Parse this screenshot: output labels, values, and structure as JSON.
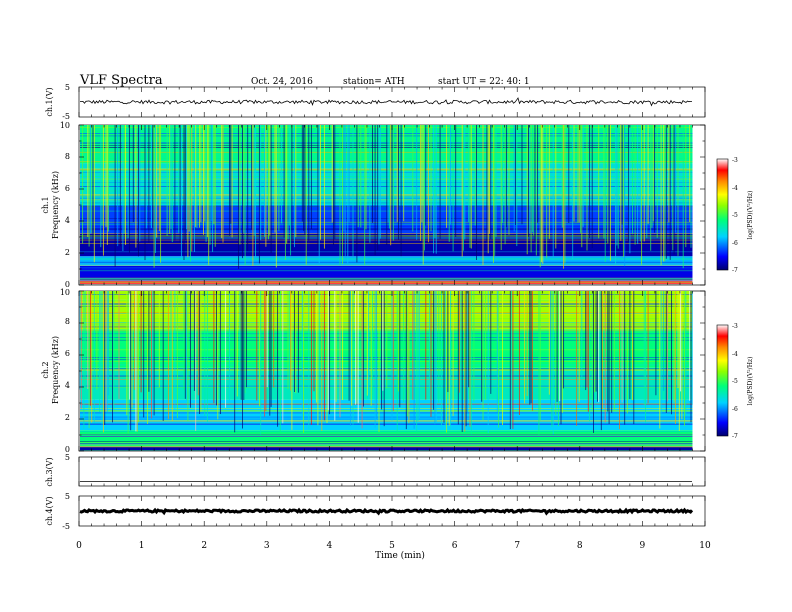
{
  "header": {
    "title": "VLF  Spectra",
    "date": "Oct. 24, 2016",
    "station": "station= ATH",
    "start": "start  UT  =   22: 40: 1"
  },
  "chart_data": [
    {
      "type": "line",
      "panel": "ch1-waveform",
      "ylabel": "ch.1(V)",
      "ylim": [
        -5,
        5
      ],
      "yticks": [
        "5",
        "-5"
      ],
      "baseline_v": 0,
      "noise_amplitude_v": 0.6,
      "color": "#000000"
    },
    {
      "type": "heatmap",
      "panel": "ch1-spectrogram",
      "ylabel_line1": "ch.1",
      "ylabel_line2": "Frequency  (kHz)",
      "ylim": [
        0,
        10
      ],
      "yticks": [
        "0",
        "2",
        "4",
        "6",
        "8",
        "10"
      ],
      "colorbar": {
        "label": "log(PSD)(V²/Hz)",
        "range": [
          -7,
          -3
        ],
        "ticks": [
          "-3",
          "-4",
          "-5",
          "-6",
          "-7"
        ]
      },
      "bands": [
        {
          "f0": 0.0,
          "f1": 0.3,
          "level": -3.3
        },
        {
          "f0": 0.3,
          "f1": 1.2,
          "level": -6.6
        },
        {
          "f0": 1.2,
          "f1": 1.8,
          "level": -5.9
        },
        {
          "f0": 1.8,
          "f1": 3.2,
          "level": -6.8
        },
        {
          "f0": 3.2,
          "f1": 5.0,
          "level": -6.3
        },
        {
          "f0": 5.0,
          "f1": 7.6,
          "level": -5.6
        },
        {
          "f0": 7.6,
          "f1": 10.0,
          "level": -5.3
        }
      ]
    },
    {
      "type": "heatmap",
      "panel": "ch2-spectrogram",
      "ylabel_line1": "ch.2",
      "ylabel_line2": "Frequency  (kHz)",
      "ylim": [
        0,
        10
      ],
      "yticks": [
        "0",
        "2",
        "4",
        "6",
        "8",
        "10"
      ],
      "colorbar": {
        "label": "log(PSD)(V²/Hz)",
        "range": [
          -7,
          -3
        ],
        "ticks": [
          "-3",
          "-4",
          "-5",
          "-6",
          "-7"
        ]
      },
      "bands": [
        {
          "f0": 0.0,
          "f1": 0.3,
          "level": -6.8
        },
        {
          "f0": 0.3,
          "f1": 1.3,
          "level": -5.2
        },
        {
          "f0": 1.3,
          "f1": 3.2,
          "level": -5.8
        },
        {
          "f0": 3.2,
          "f1": 5.2,
          "level": -5.5
        },
        {
          "f0": 5.2,
          "f1": 7.6,
          "level": -5.2
        },
        {
          "f0": 7.6,
          "f1": 10.0,
          "level": -4.6
        }
      ]
    },
    {
      "type": "line",
      "panel": "ch3-waveform",
      "ylabel": "ch.3(V)",
      "ylim": [
        -5,
        5
      ],
      "yticks": [
        "5"
      ],
      "baseline_v": -3.5,
      "noise_amplitude_v": 0.0,
      "color": "#000000"
    },
    {
      "type": "line",
      "panel": "ch4-waveform",
      "ylabel": "ch.4(V)",
      "ylim": [
        -5,
        5
      ],
      "yticks": [
        "5",
        "-5"
      ],
      "baseline_v": 0,
      "noise_amplitude_v": 0.35,
      "color": "#000000"
    }
  ],
  "time_axis": {
    "xlabel": "Time  (min)",
    "xlim": [
      0,
      10
    ],
    "ticks": [
      "0",
      "1",
      "2",
      "3",
      "4",
      "5",
      "6",
      "7",
      "8",
      "9",
      "10"
    ],
    "data_end_min": 9.8
  }
}
